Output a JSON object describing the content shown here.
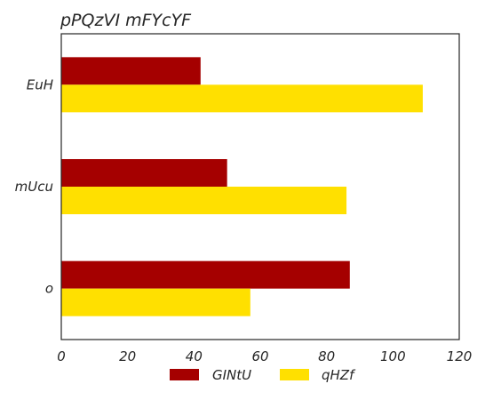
{
  "chart_data": {
    "type": "bar",
    "orientation": "horizontal",
    "title": "pPQzVI mFYcYF",
    "xlabel": "",
    "ylabel": "",
    "categories": [
      "o",
      "mUcu",
      "EuH"
    ],
    "series": [
      {
        "name": "GINtU",
        "values": [
          87,
          50,
          42
        ],
        "color": "#a50000"
      },
      {
        "name": "qHZf",
        "values": [
          57,
          86,
          109
        ],
        "color": "#ffe000"
      }
    ],
    "xlim": [
      0,
      120
    ],
    "xticks": [
      0,
      20,
      40,
      60,
      80,
      100,
      120
    ],
    "grid": false,
    "legend_position": "bottom-center"
  }
}
